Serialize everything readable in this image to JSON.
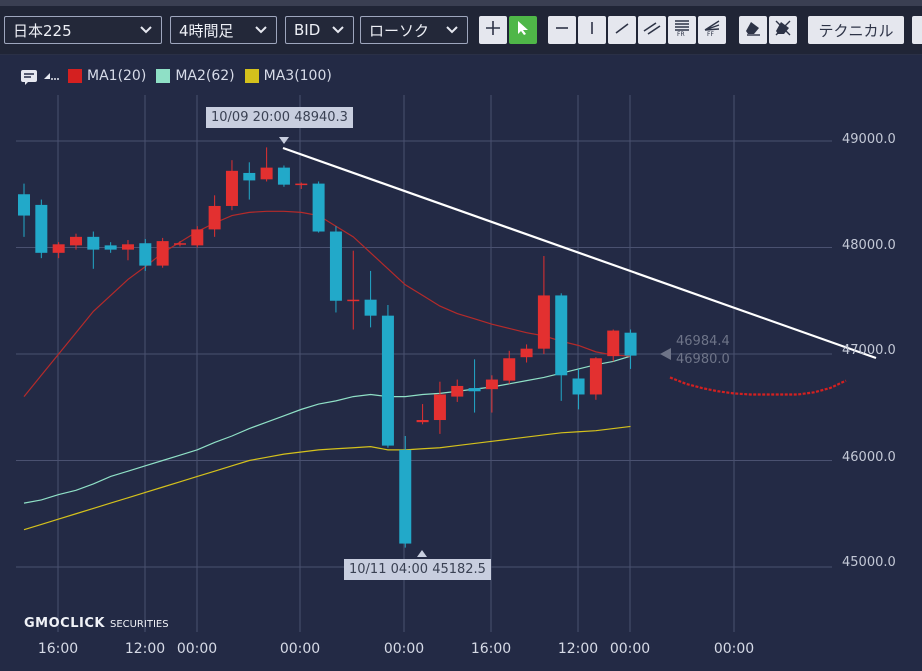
{
  "toolbar": {
    "symbol": "日本225",
    "timeframe": "4時間足",
    "price_type": "BID",
    "chart_style": "ローソク",
    "technical_label": "テクニカル",
    "icons": [
      "crosshair-icon",
      "pointer-icon",
      "horizontal-line-icon",
      "vertical-line-icon",
      "trend-line-icon",
      "parallel-line-icon",
      "fibonacci-retracement-icon",
      "fibonacci-fan-icon",
      "eraser-icon",
      "delete-all-icon"
    ]
  },
  "legend": {
    "items": [
      {
        "label": "MA1(20)",
        "color": "#d42020"
      },
      {
        "label": "MA2(62)",
        "color": "#8fe0c6"
      },
      {
        "label": "MA3(100)",
        "color": "#d4c11c"
      }
    ]
  },
  "chart_data": {
    "type": "candlestick",
    "y_ticks": [
      "49000.0",
      "48000.0",
      "47000.0",
      "46000.0",
      "45000.0"
    ],
    "y_tick_values": [
      49000,
      48000,
      47000,
      46000,
      45000
    ],
    "x_tick_labels": [
      "16:00",
      "12:00",
      "00:00",
      "00:00",
      "00:00",
      "16:00",
      "12:00",
      "00:00",
      "00:00"
    ],
    "high_callout": "10/09 20:00 48940.3",
    "low_callout": "10/11 04:00 45182.5",
    "price_tags": [
      "46984.4",
      "46980.0"
    ],
    "up_color": "#e33030",
    "down_color": "#22a9c9",
    "candles": [
      {
        "o": 48500,
        "h": 48600,
        "l": 48100,
        "c": 48300
      },
      {
        "o": 48400,
        "h": 48450,
        "l": 47900,
        "c": 47950
      },
      {
        "o": 47950,
        "h": 48050,
        "l": 47900,
        "c": 48030
      },
      {
        "o": 48020,
        "h": 48130,
        "l": 47980,
        "c": 48100
      },
      {
        "o": 48100,
        "h": 48150,
        "l": 47800,
        "c": 47980
      },
      {
        "o": 48020,
        "h": 48050,
        "l": 47950,
        "c": 47980
      },
      {
        "o": 47980,
        "h": 48070,
        "l": 47880,
        "c": 48030
      },
      {
        "o": 48040,
        "h": 48080,
        "l": 47780,
        "c": 47830
      },
      {
        "o": 47830,
        "h": 48090,
        "l": 47810,
        "c": 48060
      },
      {
        "o": 48030,
        "h": 48060,
        "l": 48010,
        "c": 48040
      },
      {
        "o": 48020,
        "h": 48200,
        "l": 48000,
        "c": 48170
      },
      {
        "o": 48170,
        "h": 48490,
        "l": 48100,
        "c": 48390
      },
      {
        "o": 48390,
        "h": 48820,
        "l": 48350,
        "c": 48720
      },
      {
        "o": 48700,
        "h": 48800,
        "l": 48450,
        "c": 48630
      },
      {
        "o": 48640,
        "h": 48940,
        "l": 48620,
        "c": 48750
      },
      {
        "o": 48750,
        "h": 48770,
        "l": 48570,
        "c": 48590
      },
      {
        "o": 48590,
        "h": 48610,
        "l": 48550,
        "c": 48600
      },
      {
        "o": 48600,
        "h": 48620,
        "l": 48140,
        "c": 48150
      },
      {
        "o": 48150,
        "h": 48200,
        "l": 47390,
        "c": 47500
      },
      {
        "o": 47500,
        "h": 47970,
        "l": 47230,
        "c": 47510
      },
      {
        "o": 47510,
        "h": 47780,
        "l": 47250,
        "c": 47360
      },
      {
        "o": 47360,
        "h": 47460,
        "l": 46120,
        "c": 46140
      },
      {
        "o": 46100,
        "h": 46230,
        "l": 45182,
        "c": 45220
      },
      {
        "o": 46360,
        "h": 46530,
        "l": 46340,
        "c": 46380
      },
      {
        "o": 46380,
        "h": 46740,
        "l": 46250,
        "c": 46620
      },
      {
        "o": 46600,
        "h": 46760,
        "l": 46550,
        "c": 46700
      },
      {
        "o": 46680,
        "h": 46950,
        "l": 46450,
        "c": 46650
      },
      {
        "o": 46670,
        "h": 46800,
        "l": 46450,
        "c": 46760
      },
      {
        "o": 46750,
        "h": 47030,
        "l": 46720,
        "c": 46960
      },
      {
        "o": 46970,
        "h": 47090,
        "l": 46920,
        "c": 47050
      },
      {
        "o": 47050,
        "h": 47920,
        "l": 47000,
        "c": 47550
      },
      {
        "o": 47550,
        "h": 47570,
        "l": 46560,
        "c": 46800
      },
      {
        "o": 46770,
        "h": 46860,
        "l": 46480,
        "c": 46620
      },
      {
        "o": 46620,
        "h": 46970,
        "l": 46570,
        "c": 46960
      },
      {
        "o": 46980,
        "h": 47230,
        "l": 46930,
        "c": 47220
      },
      {
        "o": 47200,
        "h": 47230,
        "l": 46860,
        "c": 46985
      }
    ],
    "ma1": [
      46600,
      46800,
      47000,
      47200,
      47400,
      47550,
      47700,
      47820,
      47950,
      48050,
      48150,
      48230,
      48300,
      48330,
      48340,
      48340,
      48330,
      48300,
      48200,
      48100,
      47950,
      47800,
      47650,
      47550,
      47450,
      47380,
      47330,
      47280,
      47240,
      47200,
      47170,
      47120,
      47080,
      47020,
      46990,
      46980
    ],
    "ma1_projection": [
      46780,
      46720,
      46680,
      46650,
      46630,
      46620,
      46620,
      46620,
      46620,
      46640,
      46680,
      46750
    ],
    "ma2": [
      45600,
      45630,
      45680,
      45720,
      45780,
      45850,
      45900,
      45950,
      46000,
      46050,
      46100,
      46170,
      46230,
      46300,
      46360,
      46420,
      46480,
      46530,
      46560,
      46600,
      46620,
      46600,
      46600,
      46620,
      46630,
      46650,
      46670,
      46690,
      46720,
      46750,
      46780,
      46820,
      46860,
      46900,
      46930,
      46980
    ],
    "ma3": [
      45350,
      45400,
      45450,
      45500,
      45550,
      45600,
      45650,
      45700,
      45750,
      45800,
      45850,
      45900,
      45950,
      46000,
      46030,
      46060,
      46080,
      46100,
      46110,
      46120,
      46130,
      46100,
      46100,
      46110,
      46120,
      46140,
      46160,
      46180,
      46200,
      46220,
      46240,
      46260,
      46270,
      46280,
      46300,
      46320
    ],
    "trendline": [
      {
        "i": 15,
        "v": 48940
      },
      {
        "i": 48,
        "v": 46920
      }
    ]
  }
}
